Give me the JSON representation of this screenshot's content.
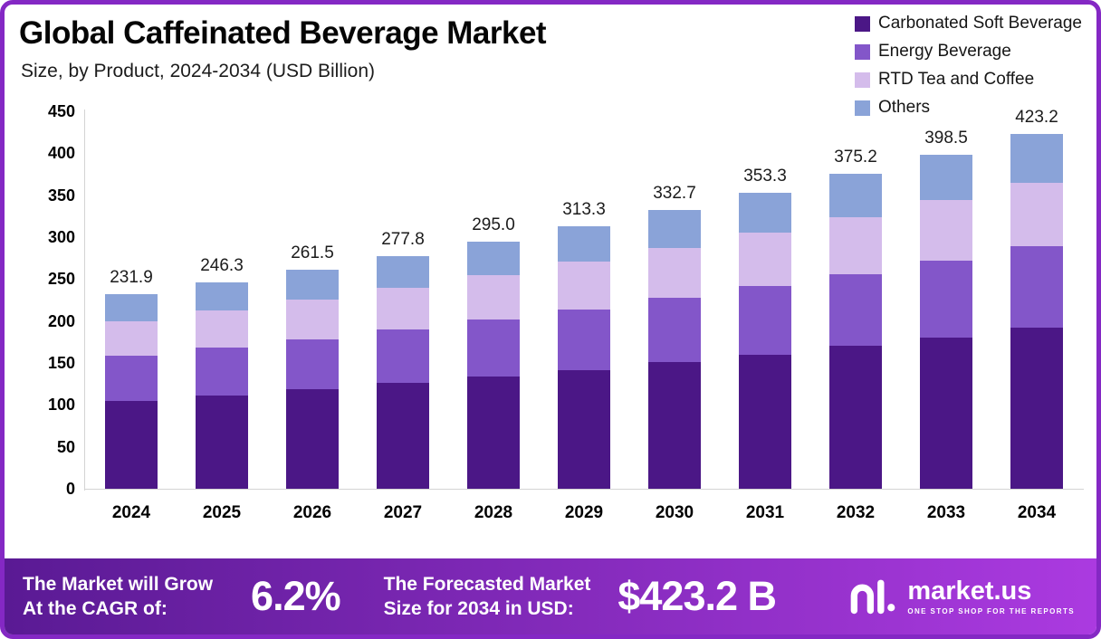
{
  "header": {
    "title": "Global Caffeinated Beverage Market",
    "subtitle": "Size, by Product, 2024-2034 (USD Billion)"
  },
  "chart_data": {
    "type": "bar",
    "stacked": true,
    "title": "Global Caffeinated Beverage Market Size, by Product, 2024-2034 (USD Billion)",
    "xlabel": "",
    "ylabel": "USD Billion",
    "ylim": [
      0,
      450
    ],
    "ytick_step": 50,
    "grid": false,
    "legend_position": "top-right",
    "categories": [
      "2024",
      "2025",
      "2026",
      "2027",
      "2028",
      "2029",
      "2030",
      "2031",
      "2032",
      "2033",
      "2034"
    ],
    "totals": [
      "231.9",
      "246.3",
      "261.5",
      "277.8",
      "295.0",
      "313.3",
      "332.7",
      "353.3",
      "375.2",
      "398.5",
      "423.2"
    ],
    "series": [
      {
        "name": "Carbonated Soft Beverage",
        "color": "#4b1786",
        "values": [
          105.0,
          111.5,
          118.4,
          125.8,
          133.6,
          141.9,
          150.7,
          160.0,
          170.0,
          180.5,
          191.7
        ]
      },
      {
        "name": "Energy Beverage",
        "color": "#8356c9",
        "values": [
          53.3,
          56.6,
          60.1,
          63.9,
          67.9,
          72.1,
          76.5,
          81.3,
          86.3,
          91.7,
          97.3
        ]
      },
      {
        "name": "RTD Tea and Coffee",
        "color": "#d4bceb",
        "values": [
          41.7,
          44.3,
          47.1,
          50.0,
          53.1,
          56.4,
          59.9,
          63.6,
          67.5,
          71.7,
          76.2
        ]
      },
      {
        "name": "Others",
        "color": "#8aa3d8",
        "values": [
          31.9,
          33.9,
          35.9,
          38.1,
          40.4,
          42.9,
          45.6,
          48.4,
          51.4,
          54.6,
          58.0
        ]
      }
    ]
  },
  "banner": {
    "cagr_label_lines": [
      "The Market will Grow",
      "At the CAGR of:"
    ],
    "cagr_value": "6.2%",
    "forecast_label_lines": [
      "The Forecasted Market",
      "Size for 2034 in USD:"
    ],
    "forecast_value": "$423.2 B",
    "logo_text": "market.us",
    "logo_tagline": "ONE STOP SHOP FOR THE REPORTS"
  },
  "colors": {
    "frame_border": "#8428c4",
    "banner_gradient_start": "#5a1a94",
    "banner_gradient_end": "#ab3ae0",
    "axis_line": "#d4d4d4",
    "text": "#111111"
  }
}
